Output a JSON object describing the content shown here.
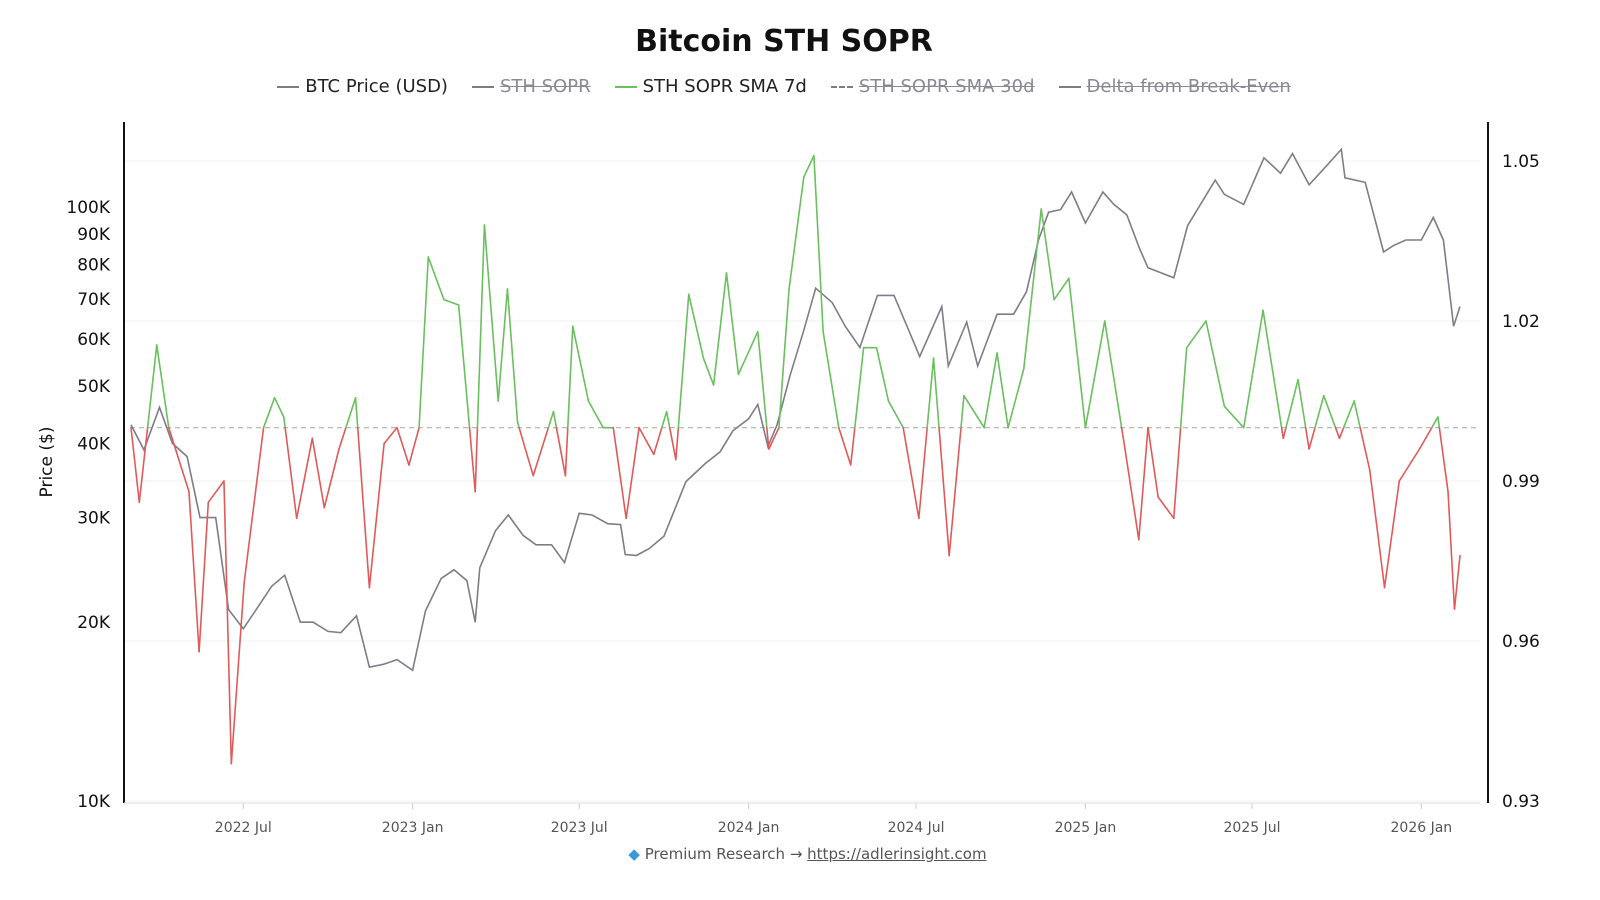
{
  "chart_data": {
    "type": "line",
    "title": "Bitcoin STH SOPR",
    "legend": [
      {
        "name": "BTC Price (USD)",
        "color": "#7f7c8a",
        "visible": true,
        "dash": false
      },
      {
        "name": "STH SOPR",
        "color": "#7f7c8a",
        "visible": false,
        "dash": false
      },
      {
        "name": "STH SOPR SMA 7d",
        "color": "#6abf5e",
        "visible": true,
        "dash": false
      },
      {
        "name": "STH SOPR SMA 30d",
        "color": "#7f7c8a",
        "visible": false,
        "dash": true
      },
      {
        "name": "Delta from Break-Even",
        "color": "#7f7c8a",
        "visible": false,
        "dash": false
      }
    ],
    "legend_placement": "top-center",
    "ylabel_left": "Price ($)",
    "y_left_scale": "log",
    "y_left_range": [
      10000,
      150000
    ],
    "y_left_ticks": [
      "10K",
      "20K",
      "30K",
      "40K",
      "50K",
      "60K",
      "70K",
      "80K",
      "90K",
      "100K"
    ],
    "y_right_range": [
      0.93,
      1.05
    ],
    "y_right_ticks": [
      "0.93",
      "0.96",
      "0.99",
      "1.02",
      "1.05"
    ],
    "x_range": [
      "2022-03-01",
      "2026-02-12"
    ],
    "x_ticks": [
      {
        "date": "2022-07-01",
        "label": "2022 Jul"
      },
      {
        "date": "2023-01-01",
        "label": "2023 Jan"
      },
      {
        "date": "2023-07-01",
        "label": "2023 Jul"
      },
      {
        "date": "2024-01-01",
        "label": "2024 Jan"
      },
      {
        "date": "2024-07-01",
        "label": "2024 Jul"
      },
      {
        "date": "2025-01-01",
        "label": "2025 Jan"
      },
      {
        "date": "2025-07-01",
        "label": "2025 Jul"
      },
      {
        "date": "2026-01-01",
        "label": "2026 Jan"
      }
    ],
    "break_even": 1.0,
    "colors": {
      "above": "#6abf5e",
      "below": "#e05a5a",
      "price": "#7f7c8a",
      "break_even": "#b0b0b0"
    },
    "grid": true,
    "series": [
      {
        "name": "BTC Price (USD)",
        "axis": "left",
        "points": [
          [
            "2022-03-01",
            43000
          ],
          [
            "2022-03-15",
            39000
          ],
          [
            "2022-04-01",
            46000
          ],
          [
            "2022-04-15",
            40000
          ],
          [
            "2022-05-01",
            38000
          ],
          [
            "2022-05-15",
            30000
          ],
          [
            "2022-06-01",
            30000
          ],
          [
            "2022-06-15",
            21000
          ],
          [
            "2022-07-01",
            19500
          ],
          [
            "2022-07-15",
            21000
          ],
          [
            "2022-08-01",
            23000
          ],
          [
            "2022-08-15",
            24000
          ],
          [
            "2022-09-01",
            20000
          ],
          [
            "2022-09-15",
            20000
          ],
          [
            "2022-10-01",
            19300
          ],
          [
            "2022-10-15",
            19200
          ],
          [
            "2022-11-01",
            20500
          ],
          [
            "2022-11-15",
            16800
          ],
          [
            "2022-12-01",
            17000
          ],
          [
            "2022-12-15",
            17300
          ],
          [
            "2023-01-01",
            16600
          ],
          [
            "2023-01-15",
            20900
          ],
          [
            "2023-02-01",
            23700
          ],
          [
            "2023-02-15",
            24500
          ],
          [
            "2023-03-01",
            23500
          ],
          [
            "2023-03-10",
            20000
          ],
          [
            "2023-03-15",
            24700
          ],
          [
            "2023-04-01",
            28500
          ],
          [
            "2023-04-15",
            30300
          ],
          [
            "2023-05-01",
            28000
          ],
          [
            "2023-05-15",
            27000
          ],
          [
            "2023-06-01",
            27000
          ],
          [
            "2023-06-15",
            25200
          ],
          [
            "2023-07-01",
            30500
          ],
          [
            "2023-07-15",
            30300
          ],
          [
            "2023-08-01",
            29300
          ],
          [
            "2023-08-15",
            29200
          ],
          [
            "2023-08-20",
            26000
          ],
          [
            "2023-09-01",
            25900
          ],
          [
            "2023-09-15",
            26600
          ],
          [
            "2023-10-01",
            27900
          ],
          [
            "2023-10-25",
            34500
          ],
          [
            "2023-11-15",
            37000
          ],
          [
            "2023-12-01",
            38700
          ],
          [
            "2023-12-15",
            42000
          ],
          [
            "2024-01-01",
            44000
          ],
          [
            "2024-01-11",
            46500
          ],
          [
            "2024-01-22",
            39500
          ],
          [
            "2024-02-01",
            43000
          ],
          [
            "2024-02-15",
            52000
          ],
          [
            "2024-03-01",
            62000
          ],
          [
            "2024-03-14",
            73000
          ],
          [
            "2024-04-01",
            69000
          ],
          [
            "2024-04-15",
            63000
          ],
          [
            "2024-05-01",
            58000
          ],
          [
            "2024-05-20",
            71000
          ],
          [
            "2024-06-07",
            71000
          ],
          [
            "2024-06-25",
            61000
          ],
          [
            "2024-07-05",
            56000
          ],
          [
            "2024-07-29",
            68000
          ],
          [
            "2024-08-05",
            54000
          ],
          [
            "2024-08-25",
            64000
          ],
          [
            "2024-09-06",
            54000
          ],
          [
            "2024-09-27",
            66000
          ],
          [
            "2024-10-15",
            66000
          ],
          [
            "2024-10-29",
            72000
          ],
          [
            "2024-11-11",
            88000
          ],
          [
            "2024-11-22",
            98000
          ],
          [
            "2024-12-05",
            99000
          ],
          [
            "2024-12-17",
            106000
          ],
          [
            "2025-01-01",
            94000
          ],
          [
            "2025-01-20",
            106000
          ],
          [
            "2025-02-01",
            101000
          ],
          [
            "2025-02-15",
            97000
          ],
          [
            "2025-03-01",
            85000
          ],
          [
            "2025-03-10",
            79000
          ],
          [
            "2025-04-07",
            76000
          ],
          [
            "2025-04-22",
            93000
          ],
          [
            "2025-05-22",
            111000
          ],
          [
            "2025-06-01",
            105000
          ],
          [
            "2025-06-22",
            101000
          ],
          [
            "2025-07-14",
            121000
          ],
          [
            "2025-08-01",
            114000
          ],
          [
            "2025-08-14",
            123000
          ],
          [
            "2025-09-01",
            109000
          ],
          [
            "2025-09-15",
            115000
          ],
          [
            "2025-10-06",
            125000
          ],
          [
            "2025-10-10",
            112000
          ],
          [
            "2025-11-01",
            110000
          ],
          [
            "2025-11-21",
            84000
          ],
          [
            "2025-12-01",
            86000
          ],
          [
            "2025-12-15",
            88000
          ],
          [
            "2026-01-01",
            88000
          ],
          [
            "2026-01-14",
            96000
          ],
          [
            "2026-01-25",
            88000
          ],
          [
            "2026-02-05",
            63000
          ],
          [
            "2026-02-12",
            68000
          ]
        ]
      },
      {
        "name": "STH SOPR SMA 7d",
        "axis": "right",
        "points": [
          [
            "2022-03-01",
            1.0
          ],
          [
            "2022-03-10",
            0.986
          ],
          [
            "2022-03-29",
            1.0155
          ],
          [
            "2022-04-11",
            1.0
          ],
          [
            "2022-05-03",
            0.988
          ],
          [
            "2022-05-14",
            0.958
          ],
          [
            "2022-05-24",
            0.986
          ],
          [
            "2022-06-10",
            0.99
          ],
          [
            "2022-06-18",
            0.937
          ],
          [
            "2022-07-02",
            0.971
          ],
          [
            "2022-07-23",
            1.0
          ],
          [
            "2022-08-04",
            1.0056
          ],
          [
            "2022-08-14",
            1.002
          ],
          [
            "2022-08-28",
            0.983
          ],
          [
            "2022-09-14",
            0.998
          ],
          [
            "2022-09-27",
            0.985
          ],
          [
            "2022-10-13",
            0.996
          ],
          [
            "2022-10-31",
            1.0056
          ],
          [
            "2022-11-15",
            0.97
          ],
          [
            "2022-12-01",
            0.997
          ],
          [
            "2022-12-15",
            1.0
          ],
          [
            "2022-12-28",
            0.993
          ],
          [
            "2023-01-08",
            1.0
          ],
          [
            "2023-01-18",
            1.032
          ],
          [
            "2023-02-04",
            1.024
          ],
          [
            "2023-02-20",
            1.023
          ],
          [
            "2023-03-10",
            0.988
          ],
          [
            "2023-03-20",
            1.038
          ],
          [
            "2023-04-04",
            1.005
          ],
          [
            "2023-04-14",
            1.026
          ],
          [
            "2023-04-25",
            1.001
          ],
          [
            "2023-05-12",
            0.991
          ],
          [
            "2023-06-03",
            1.003
          ],
          [
            "2023-06-16",
            0.991
          ],
          [
            "2023-06-24",
            1.019
          ],
          [
            "2023-07-11",
            1.005
          ],
          [
            "2023-07-27",
            1.0
          ],
          [
            "2023-08-07",
            1.0
          ],
          [
            "2023-08-21",
            0.983
          ],
          [
            "2023-09-04",
            1.0
          ],
          [
            "2023-09-20",
            0.995
          ],
          [
            "2023-10-04",
            1.003
          ],
          [
            "2023-10-14",
            0.994
          ],
          [
            "2023-10-28",
            1.025
          ],
          [
            "2023-11-13",
            1.013
          ],
          [
            "2023-11-24",
            1.008
          ],
          [
            "2023-12-08",
            1.029
          ],
          [
            "2023-12-21",
            1.01
          ],
          [
            "2024-01-11",
            1.018
          ],
          [
            "2024-01-23",
            0.996
          ],
          [
            "2024-02-03",
            1.0
          ],
          [
            "2024-02-14",
            1.026
          ],
          [
            "2024-03-01",
            1.047
          ],
          [
            "2024-03-12",
            1.051
          ],
          [
            "2024-03-22",
            1.018
          ],
          [
            "2024-04-08",
            1.0
          ],
          [
            "2024-04-21",
            0.993
          ],
          [
            "2024-05-05",
            1.015
          ],
          [
            "2024-05-19",
            1.015
          ],
          [
            "2024-06-01",
            1.005
          ],
          [
            "2024-06-17",
            1.0
          ],
          [
            "2024-07-04",
            0.983
          ],
          [
            "2024-07-20",
            1.013
          ],
          [
            "2024-08-06",
            0.976
          ],
          [
            "2024-08-22",
            1.006
          ],
          [
            "2024-09-13",
            1.0
          ],
          [
            "2024-09-27",
            1.014
          ],
          [
            "2024-10-09",
            1.0
          ],
          [
            "2024-10-26",
            1.011
          ],
          [
            "2024-11-14",
            1.041
          ],
          [
            "2024-11-28",
            1.024
          ],
          [
            "2024-12-14",
            1.028
          ],
          [
            "2025-01-01",
            1.0
          ],
          [
            "2025-01-22",
            1.02
          ],
          [
            "2025-02-13",
            0.996
          ],
          [
            "2025-02-28",
            0.979
          ],
          [
            "2025-03-10",
            1.0
          ],
          [
            "2025-03-21",
            0.987
          ],
          [
            "2025-04-07",
            0.983
          ],
          [
            "2025-04-21",
            1.015
          ],
          [
            "2025-05-12",
            1.02
          ],
          [
            "2025-06-01",
            1.004
          ],
          [
            "2025-06-22",
            1.0
          ],
          [
            "2025-07-13",
            1.022
          ],
          [
            "2025-08-04",
            0.998
          ],
          [
            "2025-08-20",
            1.009
          ],
          [
            "2025-09-01",
            0.996
          ],
          [
            "2025-09-17",
            1.006
          ],
          [
            "2025-10-04",
            0.998
          ],
          [
            "2025-10-20",
            1.005
          ],
          [
            "2025-11-06",
            0.992
          ],
          [
            "2025-11-22",
            0.97
          ],
          [
            "2025-12-08",
            0.99
          ],
          [
            "2025-12-30",
            0.996
          ],
          [
            "2026-01-19",
            1.002
          ],
          [
            "2026-01-30",
            0.988
          ],
          [
            "2026-02-06",
            0.966
          ],
          [
            "2026-02-12",
            0.976
          ]
        ]
      }
    ]
  },
  "footer": {
    "icon": "gem-icon",
    "text": "Premium Research →",
    "link": "https://adlerinsight.com"
  }
}
